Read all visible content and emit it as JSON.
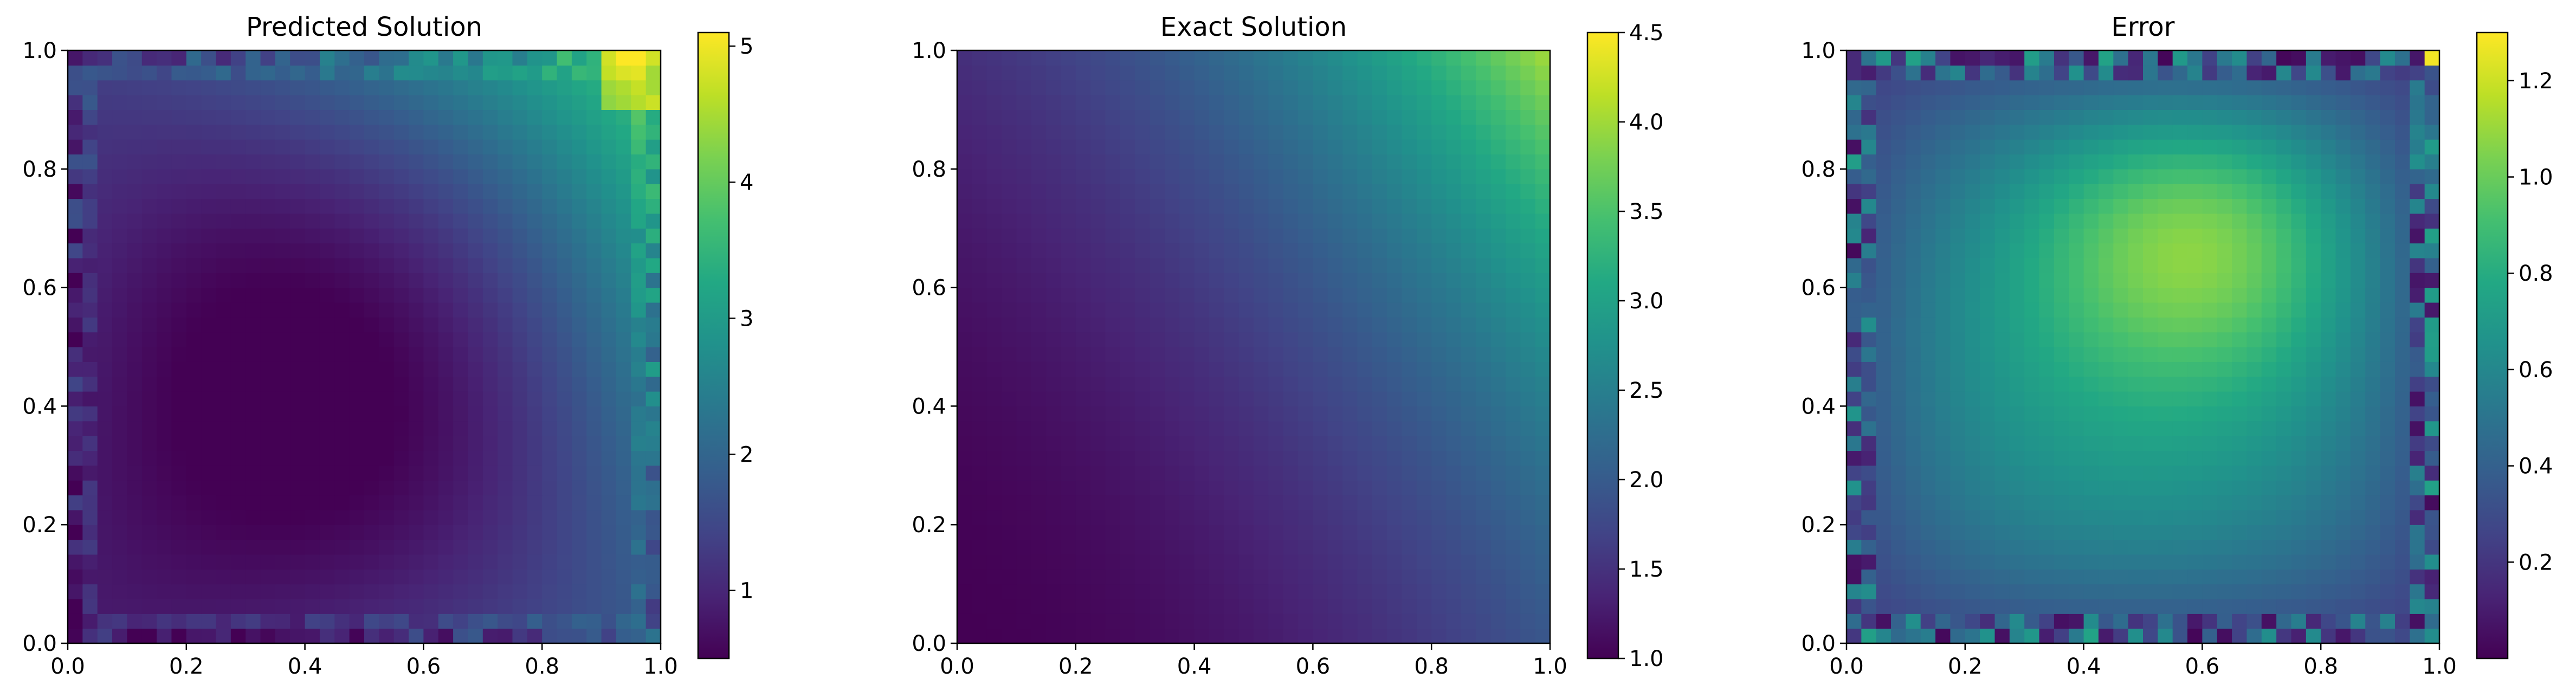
{
  "chart_data": [
    {
      "type": "heatmap",
      "title": "Predicted Solution",
      "field": "predicted",
      "grid": 40,
      "xlim": [
        0.0,
        1.0
      ],
      "ylim": [
        0.0,
        1.0
      ],
      "xticks": [
        "0.0",
        "0.2",
        "0.4",
        "0.6",
        "0.8",
        "1.0"
      ],
      "yticks": [
        "0.0",
        "0.2",
        "0.4",
        "0.6",
        "0.8",
        "1.0"
      ],
      "colorbar": {
        "min": 0.5,
        "max": 5.1,
        "ticks": [
          1,
          2,
          3,
          4,
          5
        ],
        "tick_labels": [
          "1",
          "2",
          "3",
          "4",
          "5"
        ]
      },
      "colormap": "viridis"
    },
    {
      "type": "heatmap",
      "title": "Exact Solution",
      "field": "exact",
      "grid": 40,
      "xlim": [
        0.0,
        1.0
      ],
      "ylim": [
        0.0,
        1.0
      ],
      "xticks": [
        "0.0",
        "0.2",
        "0.4",
        "0.6",
        "0.8",
        "1.0"
      ],
      "yticks": [
        "0.0",
        "0.2",
        "0.4",
        "0.6",
        "0.8",
        "1.0"
      ],
      "colorbar": {
        "min": 1.0,
        "max": 4.5,
        "ticks": [
          1.0,
          1.5,
          2.0,
          2.5,
          3.0,
          3.5,
          4.0,
          4.5
        ],
        "tick_labels": [
          "1.0",
          "1.5",
          "2.0",
          "2.5",
          "3.0",
          "3.5",
          "4.0",
          "4.5"
        ]
      },
      "colormap": "viridis"
    },
    {
      "type": "heatmap",
      "title": "Error",
      "field": "error",
      "grid": 40,
      "xlim": [
        0.0,
        1.0
      ],
      "ylim": [
        0.0,
        1.0
      ],
      "xticks": [
        "0.0",
        "0.2",
        "0.4",
        "0.6",
        "0.8",
        "1.0"
      ],
      "yticks": [
        "0.0",
        "0.2",
        "0.4",
        "0.6",
        "0.8",
        "1.0"
      ],
      "colorbar": {
        "min": 0.0,
        "max": 1.3,
        "ticks": [
          0.2,
          0.4,
          0.6,
          0.8,
          1.0,
          1.2
        ],
        "tick_labels": [
          "0.2",
          "0.4",
          "0.6",
          "0.8",
          "1.0",
          "1.2"
        ]
      },
      "colormap": "viridis"
    }
  ]
}
